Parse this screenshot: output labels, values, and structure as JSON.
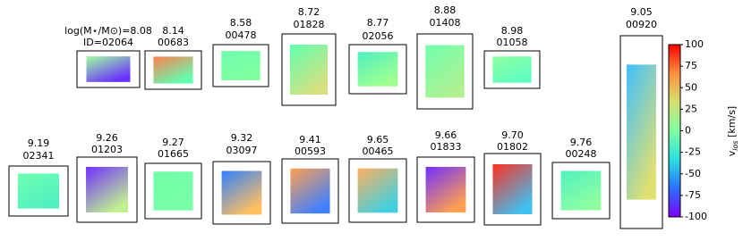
{
  "chart_data": {
    "type": "velocity-maps",
    "panels": [
      {
        "mass": "log(M⋆/M⊙)=8.08",
        "id": "ID=02064",
        "colors": [
          "#9fffa0",
          "#6a30ff"
        ]
      },
      {
        "mass": "8.14",
        "id": "00683",
        "colors": [
          "#ff8050",
          "#60ffb0"
        ]
      },
      {
        "mass": "8.58",
        "id": "00478",
        "colors": [
          "#70ffb0",
          "#80ffa0"
        ]
      },
      {
        "mass": "8.72",
        "id": "01828",
        "colors": [
          "#60ffb0",
          "#d8e080"
        ]
      },
      {
        "mass": "8.77",
        "id": "02056",
        "colors": [
          "#50f0c0",
          "#a0ff90"
        ]
      },
      {
        "mass": "8.88",
        "id": "01408",
        "colors": [
          "#70ffb0",
          "#b0f090"
        ]
      },
      {
        "mass": "8.98",
        "id": "01058",
        "colors": [
          "#90ffa0",
          "#60ffc0"
        ]
      },
      {
        "mass": "9.05",
        "id": "00920",
        "colors": [
          "#40c0ff",
          "#e0e070"
        ]
      },
      {
        "mass": "9.19",
        "id": "02341",
        "colors": [
          "#70ffb0",
          "#50f0c0"
        ]
      },
      {
        "mass": "9.26",
        "id": "01203",
        "colors": [
          "#7030ff",
          "#c0f090"
        ]
      },
      {
        "mass": "9.27",
        "id": "01665",
        "colors": [
          "#70ffa8",
          "#78ffa8"
        ]
      },
      {
        "mass": "9.32",
        "id": "03097",
        "colors": [
          "#3080ff",
          "#ffc060"
        ]
      },
      {
        "mass": "9.41",
        "id": "00593",
        "colors": [
          "#ffa050",
          "#4080ff"
        ]
      },
      {
        "mass": "9.65",
        "id": "00465",
        "colors": [
          "#ffb060",
          "#40d0e0"
        ]
      },
      {
        "mass": "9.66",
        "id": "01833",
        "colors": [
          "#7030ff",
          "#ffa050"
        ]
      },
      {
        "mass": "9.70",
        "id": "01802",
        "colors": [
          "#ff3020",
          "#40c0f0"
        ]
      },
      {
        "mass": "9.76",
        "id": "00248",
        "colors": [
          "#50f0c0",
          "#90ffa0"
        ]
      }
    ],
    "colorbar": {
      "label": [
        "v",
        "los",
        " [km/s]"
      ],
      "clim": [
        -100,
        100
      ],
      "cticks": [
        100,
        75,
        50,
        25,
        0,
        -25,
        -50,
        -75,
        -100
      ],
      "colors": [
        "#8000ff",
        "#2a70ff",
        "#2adfe0",
        "#80ffa0",
        "#d4e070",
        "#ff9040",
        "#ff0000"
      ]
    }
  }
}
